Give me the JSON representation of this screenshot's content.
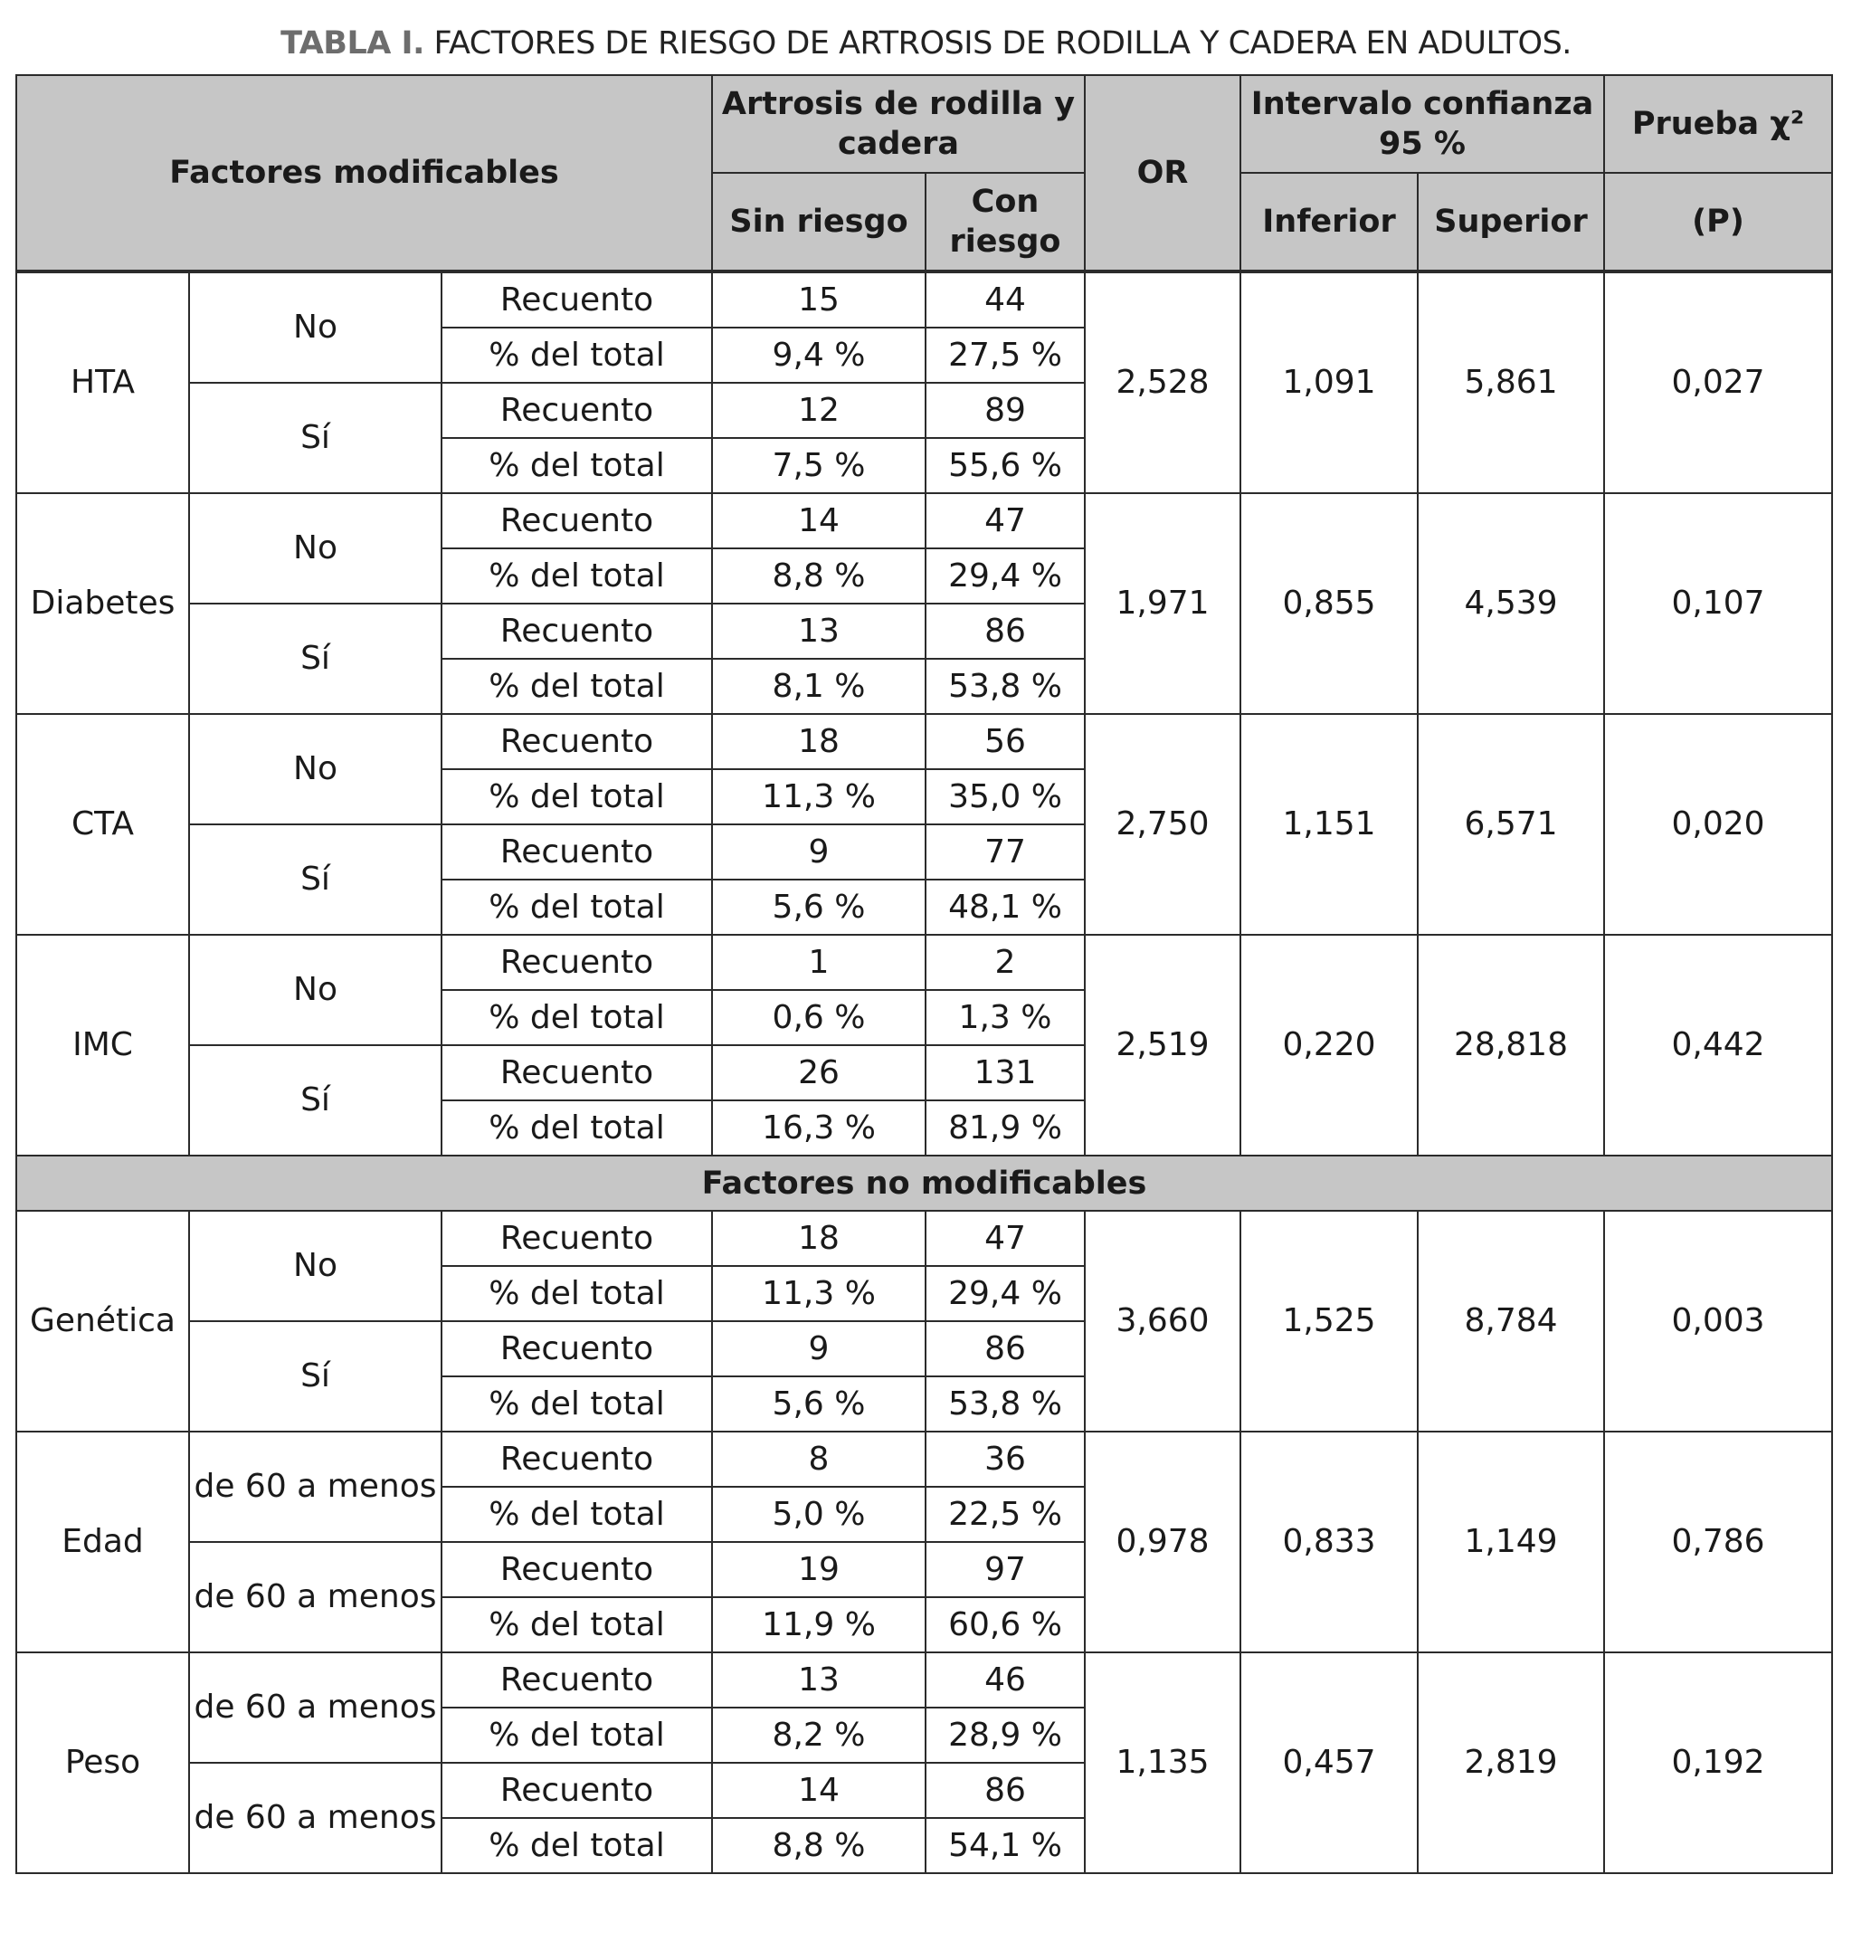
{
  "title": {
    "label": "TABLA I.",
    "text": "FACTORES DE RIESGO DE ARTROSIS DE RODILLA Y CADERA EN ADULTOS."
  },
  "header": {
    "factores": "Factores modificables",
    "artrosis": "Artrosis de rodilla y cadera",
    "sin_riesgo": "Sin riesgo",
    "con_riesgo": "Con riesgo",
    "or": "OR",
    "intervalo": "Intervalo confianza 95 %",
    "inferior": "Inferior",
    "superior": "Superior",
    "prueba": "Prueba χ²",
    "p": "(P)"
  },
  "section_no_modificables": "Factores no modificables",
  "modificables": [
    {
      "factor": "HTA",
      "groups": [
        {
          "label": "No",
          "rows": [
            [
              "Recuento",
              "15",
              "44"
            ],
            [
              "% del total",
              "9,4 %",
              "27,5 %"
            ]
          ]
        },
        {
          "label": "Sí",
          "rows": [
            [
              "Recuento",
              "12",
              "89"
            ],
            [
              "% del total",
              "7,5 %",
              "55,6 %"
            ]
          ]
        }
      ],
      "or": "2,528",
      "inferior": "1,091",
      "superior": "5,861",
      "p": "0,027"
    },
    {
      "factor": "Diabetes",
      "groups": [
        {
          "label": "No",
          "rows": [
            [
              "Recuento",
              "14",
              "47"
            ],
            [
              "% del total",
              "8,8 %",
              "29,4 %"
            ]
          ]
        },
        {
          "label": "Sí",
          "rows": [
            [
              "Recuento",
              "13",
              "86"
            ],
            [
              "% del total",
              "8,1 %",
              "53,8 %"
            ]
          ]
        }
      ],
      "or": "1,971",
      "inferior": "0,855",
      "superior": "4,539",
      "p": "0,107"
    },
    {
      "factor": "CTA",
      "groups": [
        {
          "label": "No",
          "rows": [
            [
              "Recuento",
              "18",
              "56"
            ],
            [
              "% del total",
              "11,3 %",
              "35,0 %"
            ]
          ]
        },
        {
          "label": "Sí",
          "rows": [
            [
              "Recuento",
              "9",
              "77"
            ],
            [
              "% del total",
              "5,6 %",
              "48,1 %"
            ]
          ]
        }
      ],
      "or": "2,750",
      "inferior": "1,151",
      "superior": "6,571",
      "p": "0,020"
    },
    {
      "factor": "IMC",
      "groups": [
        {
          "label": "No",
          "rows": [
            [
              "Recuento",
              "1",
              "2"
            ],
            [
              "% del total",
              "0,6 %",
              "1,3 %"
            ]
          ]
        },
        {
          "label": "Sí",
          "rows": [
            [
              "Recuento",
              "26",
              "131"
            ],
            [
              "% del total",
              "16,3 %",
              "81,9 %"
            ]
          ]
        }
      ],
      "or": "2,519",
      "inferior": "0,220",
      "superior": "28,818",
      "p": "0,442"
    }
  ],
  "no_modificables": [
    {
      "factor": "Genética",
      "groups": [
        {
          "label": "No",
          "rows": [
            [
              "Recuento",
              "18",
              "47"
            ],
            [
              "% del total",
              "11,3 %",
              "29,4 %"
            ]
          ]
        },
        {
          "label": "Sí",
          "rows": [
            [
              "Recuento",
              "9",
              "86"
            ],
            [
              "% del total",
              "5,6 %",
              "53,8 %"
            ]
          ]
        }
      ],
      "or": "3,660",
      "inferior": "1,525",
      "superior": "8,784",
      "p": "0,003"
    },
    {
      "factor": "Edad",
      "groups": [
        {
          "label": "de 60 a menos",
          "rows": [
            [
              "Recuento",
              "8",
              "36"
            ],
            [
              "% del total",
              "5,0 %",
              "22,5 %"
            ]
          ]
        },
        {
          "label": "de 60 a menos",
          "rows": [
            [
              "Recuento",
              "19",
              "97"
            ],
            [
              "% del total",
              "11,9 %",
              "60,6 %"
            ]
          ]
        }
      ],
      "or": "0,978",
      "inferior": "0,833",
      "superior": "1,149",
      "p": "0,786"
    },
    {
      "factor": "Peso",
      "groups": [
        {
          "label": "de 60 a menos",
          "rows": [
            [
              "Recuento",
              "13",
              "46"
            ],
            [
              "% del total",
              "8,2 %",
              "28,9 %"
            ]
          ]
        },
        {
          "label": "de 60 a menos",
          "rows": [
            [
              "Recuento",
              "14",
              "86"
            ],
            [
              "% del total",
              "8,8 %",
              "54,1 %"
            ]
          ]
        }
      ],
      "or": "1,135",
      "inferior": "0,457",
      "superior": "2,819",
      "p": "0,192"
    }
  ]
}
